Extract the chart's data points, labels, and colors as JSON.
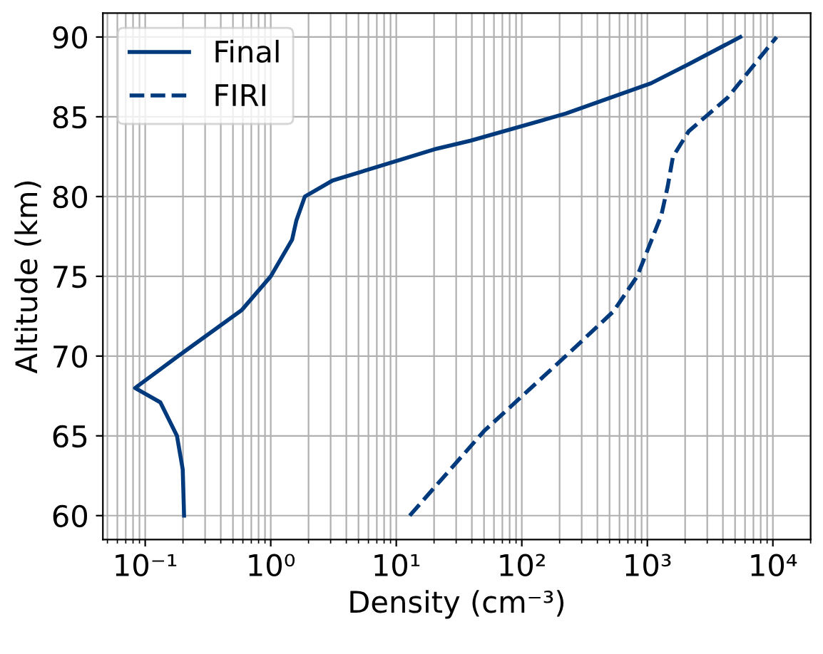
{
  "chart_data": {
    "type": "line",
    "xlabel": "Density (cm⁻³)",
    "ylabel": "Altitude (km)",
    "log": "x",
    "xlim": [
      0.046,
      20000
    ],
    "ylim": [
      58.5,
      91.5
    ],
    "xticks": [
      {
        "value": 0.1,
        "label": "10⁻¹"
      },
      {
        "value": 1,
        "label": "10⁰"
      },
      {
        "value": 10,
        "label": "10¹"
      },
      {
        "value": 100,
        "label": "10²"
      },
      {
        "value": 1000,
        "label": "10³"
      },
      {
        "value": 10000,
        "label": "10⁴"
      }
    ],
    "yticks": [
      60,
      65,
      70,
      75,
      80,
      85,
      90
    ],
    "grid": true,
    "legend": "top left",
    "series": [
      {
        "name": "Final",
        "color": "#003a7d",
        "line_style": "solid",
        "x": [
          0.204,
          0.199,
          0.179,
          0.132,
          0.083,
          0.183,
          0.59,
          1.0,
          1.48,
          1.6,
          1.87,
          3.1,
          21,
          39,
          224,
          1070,
          2140,
          5500
        ],
        "values": [
          60,
          62.9,
          65,
          67.1,
          68,
          70,
          72.9,
          75,
          77.3,
          78.5,
          80,
          81,
          83,
          83.5,
          85.2,
          87.1,
          88.3,
          90
        ]
      },
      {
        "name": "FIRI",
        "color": "#003a7d",
        "line_style": "dashed",
        "x": [
          12.8,
          50,
          224,
          537,
          830,
          1290,
          1450,
          1600,
          2140,
          4360,
          10700
        ],
        "values": [
          60,
          65.3,
          70,
          72.8,
          75,
          78.8,
          80.6,
          82.5,
          84.1,
          86.2,
          90
        ]
      }
    ]
  }
}
